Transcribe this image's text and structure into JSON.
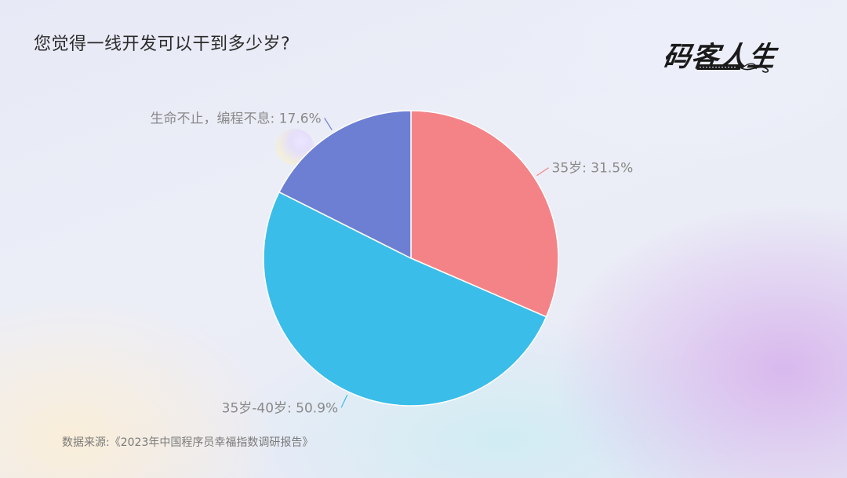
{
  "page": {
    "title": "您觉得一线开发可以干到多少岁?",
    "source": "数据来源:《2023年中国程序员幸福指数调研报告》"
  },
  "logo": {
    "text": "码客人生",
    "icon": "keyboard-icon"
  },
  "colors": {
    "slice_35": "#f48387",
    "slice_35_40": "#3bbde9",
    "slice_forever": "#6d7fd3"
  },
  "chart_data": {
    "type": "pie",
    "title": "您觉得一线开发可以干到多少岁?",
    "start_angle_deg": 0,
    "direction": "clockwise",
    "slices": [
      {
        "label": "35岁",
        "value": 31.5,
        "display": "35岁: 31.5%",
        "color": "#f48387"
      },
      {
        "label": "35岁-40岁",
        "value": 50.9,
        "display": "35岁-40岁: 50.9%",
        "color": "#3bbde9"
      },
      {
        "label": "生命不止，编程不息",
        "value": 17.6,
        "display": "生命不止，编程不息: 17.6%",
        "color": "#6d7fd3"
      }
    ],
    "legend": "none"
  }
}
